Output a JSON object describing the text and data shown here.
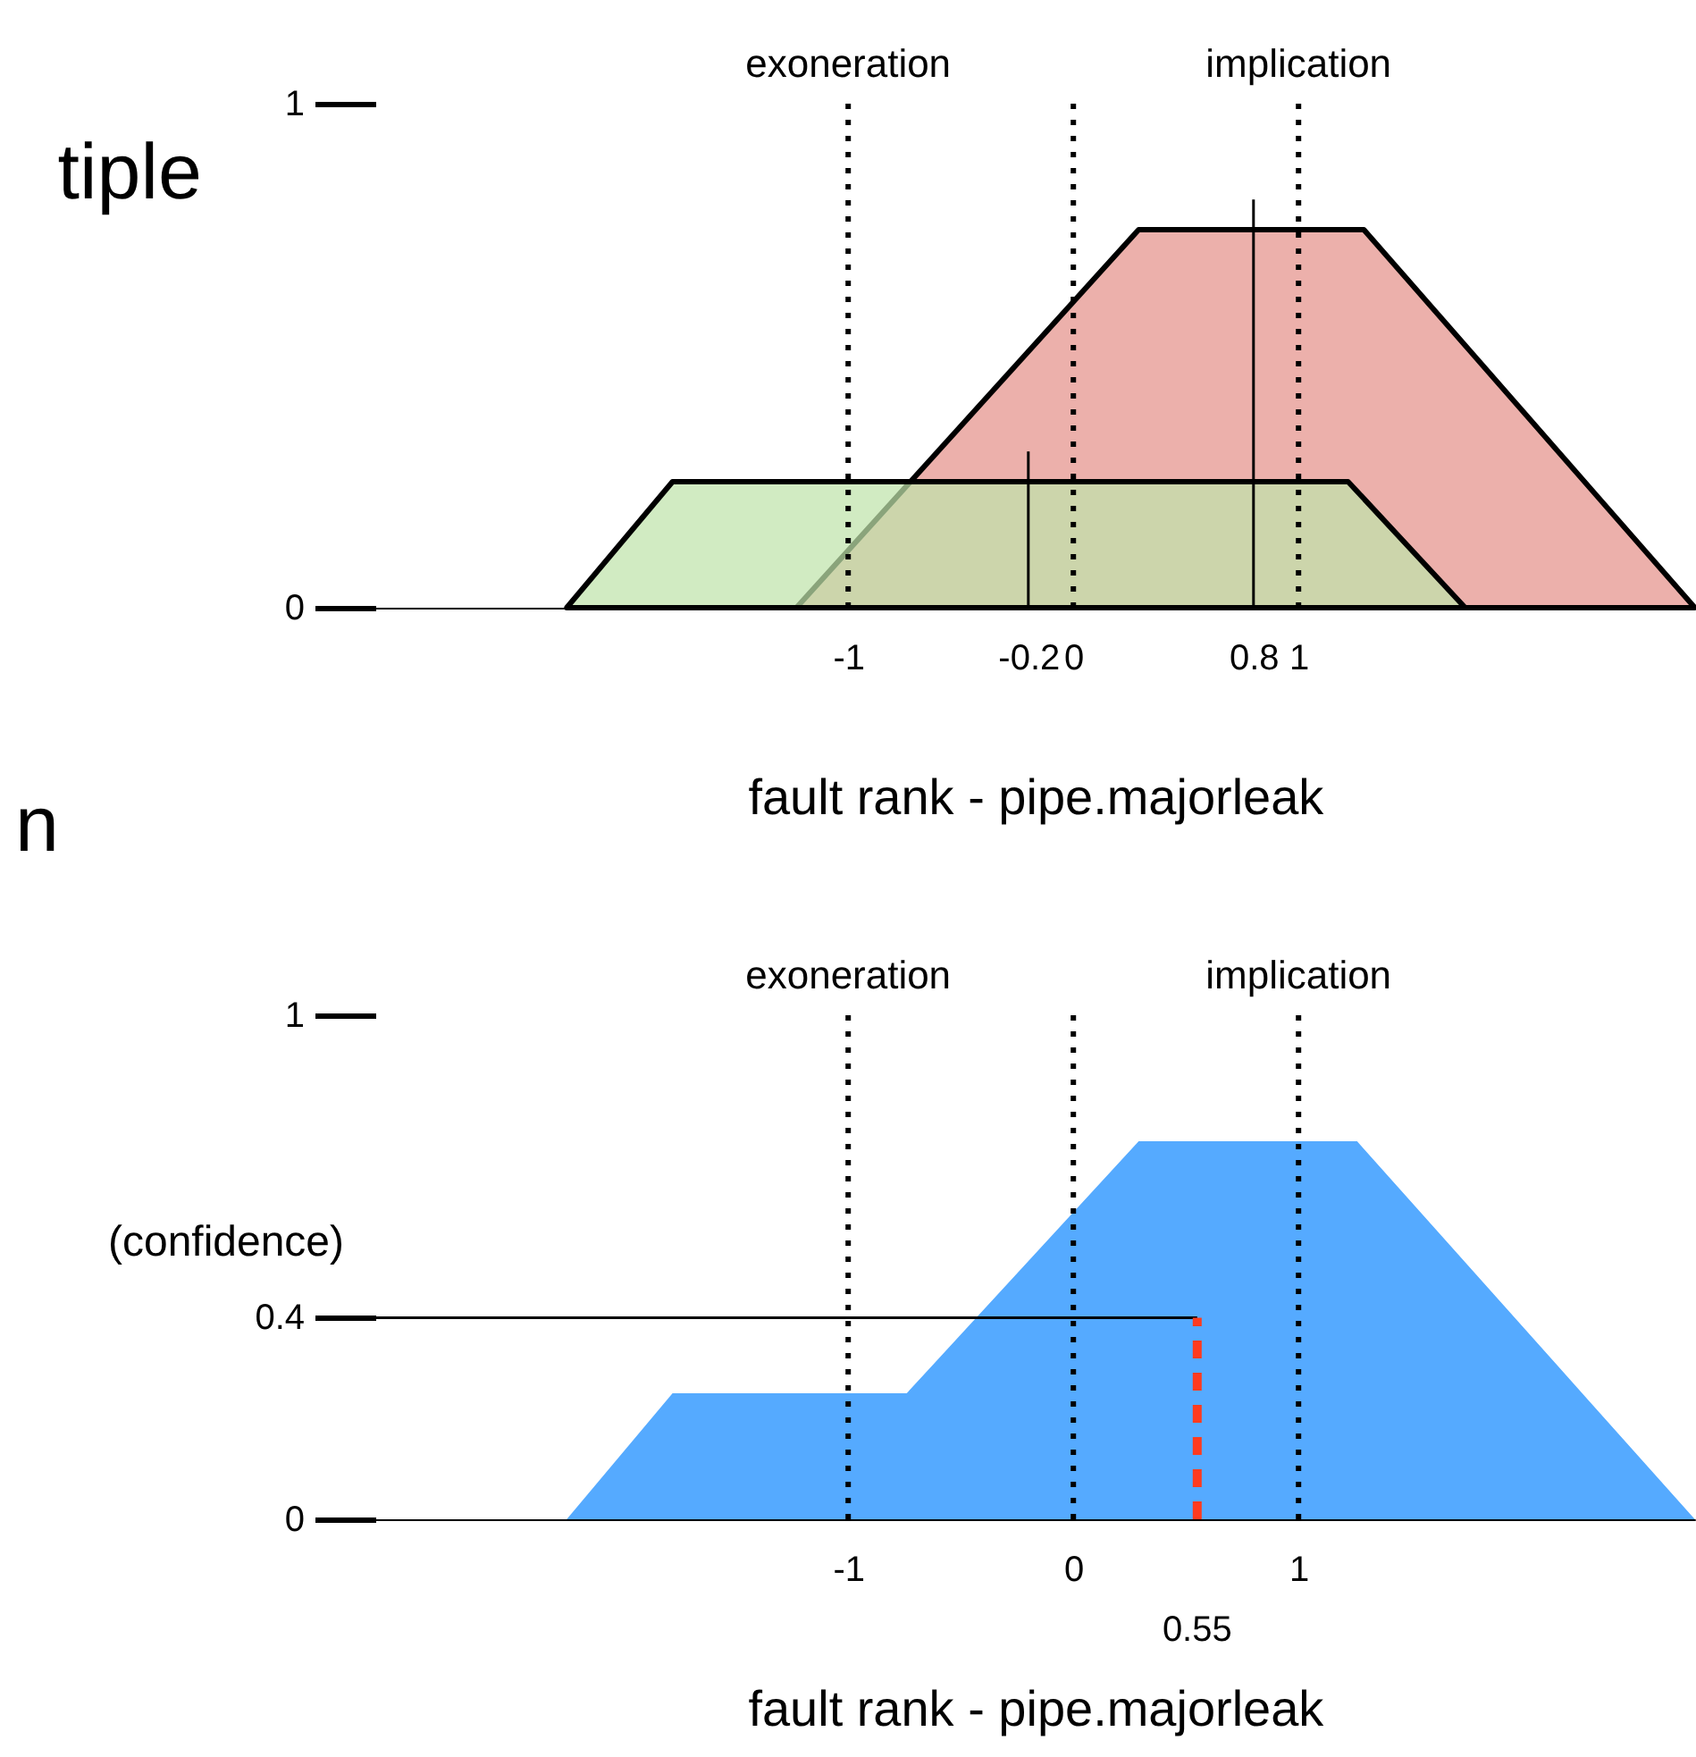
{
  "chart_data": [
    {
      "type": "area",
      "xlabel": "fault rank - pipe.majorleak",
      "xlim": [
        -3.1,
        2.76
      ],
      "ylim": [
        0,
        1
      ],
      "xticks": [
        -1,
        -0.2,
        0,
        0.8,
        1
      ],
      "yticks": [
        0,
        1
      ],
      "grid": false,
      "series": [
        {
          "color": "#e5928a",
          "line_style": "solid",
          "x": [
            -1.23,
            0.29,
            1.29,
            2.76
          ],
          "values": [
            0,
            0.75,
            0.75,
            0
          ]
        },
        {
          "color": "#bfe3aa",
          "line_style": "solid",
          "x": [
            -2.25,
            -1.78,
            1.22,
            1.74
          ],
          "values": [
            0,
            0.25,
            0.25,
            0
          ]
        },
        {
          "type": "line",
          "color": "#000000",
          "x": [
            -0.2,
            -0.2
          ],
          "values": [
            0,
            0.31
          ]
        },
        {
          "type": "line",
          "color": "#000000",
          "x": [
            0.8,
            0.8
          ],
          "values": [
            0,
            0.81
          ]
        }
      ],
      "ref_lines": [
        {
          "axis": "x",
          "value": -1,
          "label": "exoneration",
          "line_style": "dotted"
        },
        {
          "axis": "x",
          "value": 0,
          "line_style": "dotted"
        },
        {
          "axis": "x",
          "value": 1,
          "label": "implication",
          "line_style": "dotted"
        }
      ],
      "annotations": [
        "tiple",
        "n"
      ]
    },
    {
      "type": "area",
      "xlabel": "fault rank - pipe.majorleak",
      "ylabel": "(confidence)",
      "xlim": [
        -3.1,
        2.76
      ],
      "ylim": [
        0,
        1
      ],
      "xticks": [
        -1,
        0,
        1
      ],
      "yticks": [
        0,
        0.4,
        1
      ],
      "grid": false,
      "series": [
        {
          "color": "#55aaff",
          "x": [
            -2.25,
            -1.78,
            -0.74,
            0.29,
            1.26,
            2.76
          ],
          "values": [
            0,
            0.25,
            0.25,
            0.75,
            0.75,
            0
          ]
        },
        {
          "type": "line",
          "color": "#000000",
          "x": [
            -3.1,
            0.55
          ],
          "values": [
            0.4,
            0.4
          ]
        },
        {
          "type": "line",
          "color": "#ff3b1f",
          "line_style": "dashed",
          "x": [
            0.55,
            0.55
          ],
          "values": [
            0,
            0.4
          ]
        }
      ],
      "ref_lines": [
        {
          "axis": "x",
          "value": -1,
          "label": "exoneration",
          "line_style": "dotted"
        },
        {
          "axis": "x",
          "value": 0,
          "line_style": "dotted"
        },
        {
          "axis": "x",
          "value": 1,
          "label": "implication",
          "line_style": "dotted"
        }
      ],
      "annotations": [
        {
          "text": "0.55",
          "x": 0.55,
          "y": 0
        }
      ]
    }
  ]
}
